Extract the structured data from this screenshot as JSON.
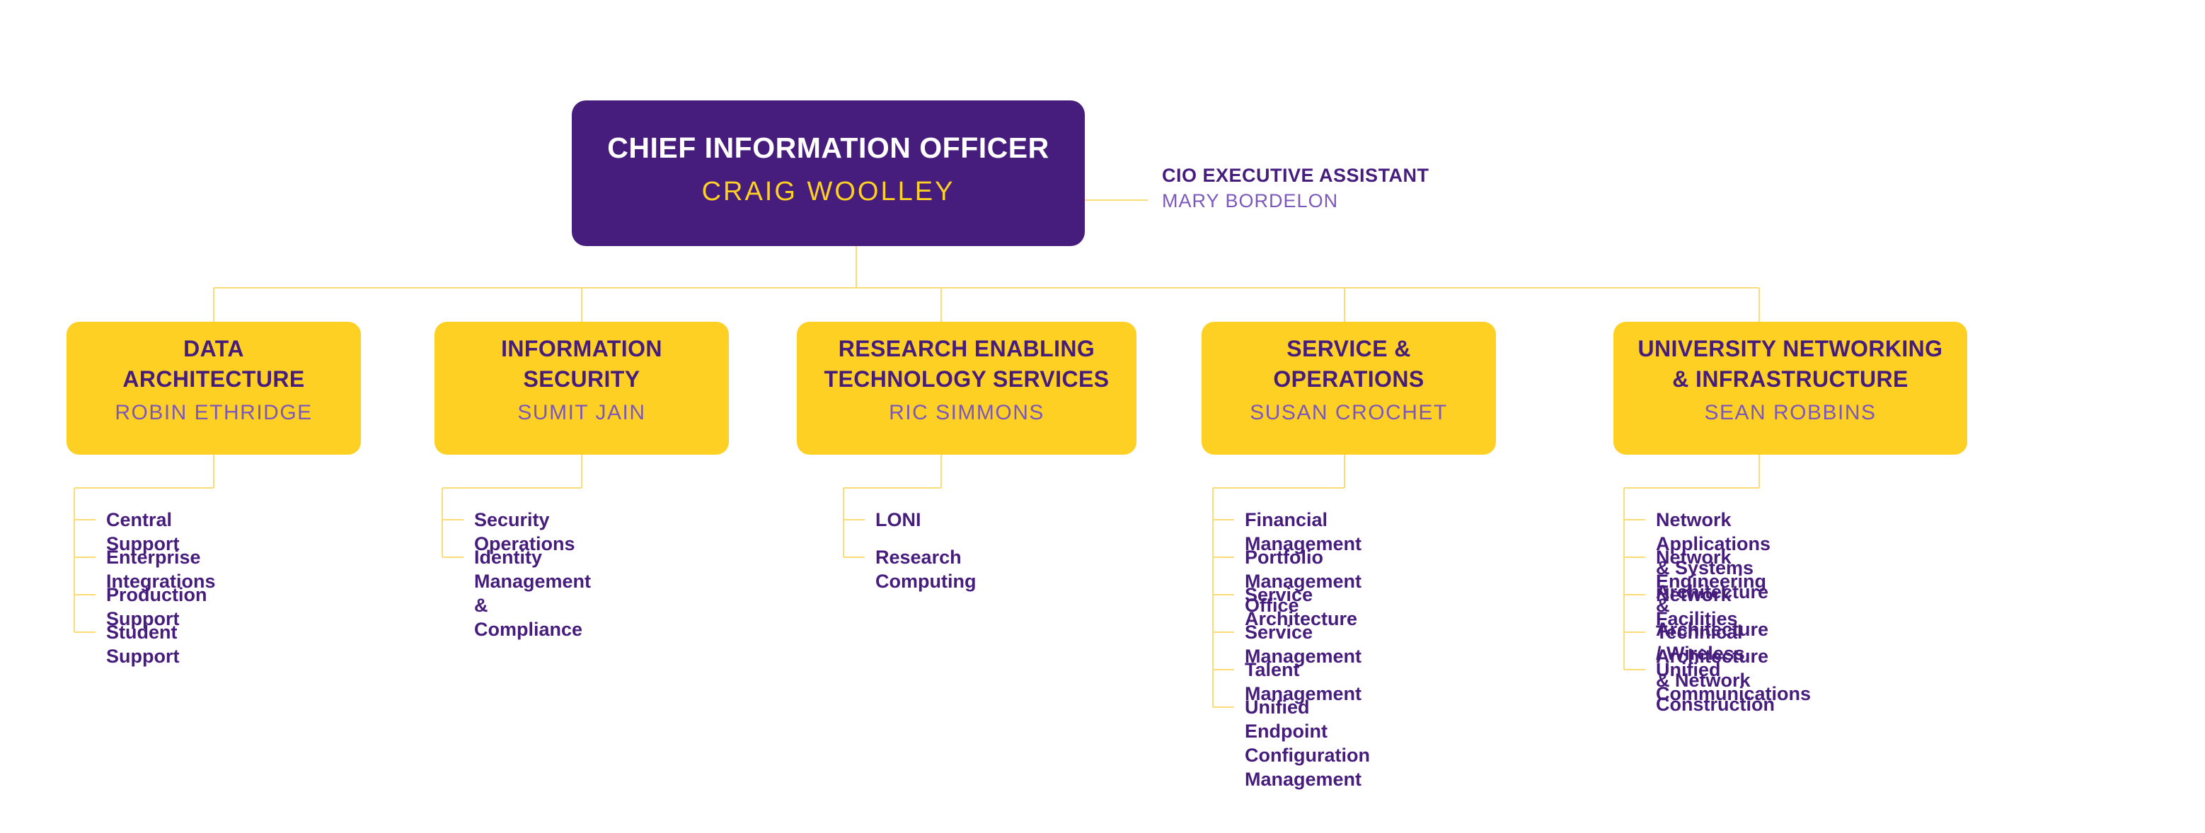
{
  "colors": {
    "purple": "#461D7C",
    "gold": "#FDD023",
    "light_purple": "#7C58BB",
    "connector": "#FBDC76",
    "white": "#FFFFFF"
  },
  "cio": {
    "title": "CHIEF INFORMATION OFFICER",
    "name": "CRAIG WOOLLEY"
  },
  "assistant": {
    "title": "CIO EXECUTIVE ASSISTANT",
    "name": "MARY BORDELON"
  },
  "departments": [
    {
      "title": "DATA\nARCHITECTURE",
      "name": "ROBIN ETHRIDGE",
      "units": [
        "Central Support",
        "Enterprise Integrations",
        "Production Support",
        "Student Support"
      ]
    },
    {
      "title": "INFORMATION\nSECURITY",
      "name": "SUMIT JAIN",
      "units": [
        "Security Operations",
        "Identity Management\n& Compliance"
      ]
    },
    {
      "title": "RESEARCH ENABLING\nTECHNOLOGY SERVICES",
      "name": "RIC SIMMONS",
      "units": [
        "LONI",
        "Research Computing"
      ]
    },
    {
      "title": "SERVICE &\nOPERATIONS",
      "name": "SUSAN CROCHET",
      "units": [
        "Financial Management",
        "Portfolio Management Office",
        "Service Architecture",
        "Service Management",
        "Talent Management",
        "Unified Endpoint Configuration\nManagement"
      ]
    },
    {
      "title": "UNIVERSITY NETWORKING\n& INFRASTRUCTURE",
      "name": "SEAN ROBBINS",
      "units": [
        "Network Applications & Systems Architecture",
        "Network Engineering & Architecture / Wireless",
        "Network Facilities",
        "Technical Architecture & Network Construction",
        "Unified Communications"
      ]
    }
  ]
}
